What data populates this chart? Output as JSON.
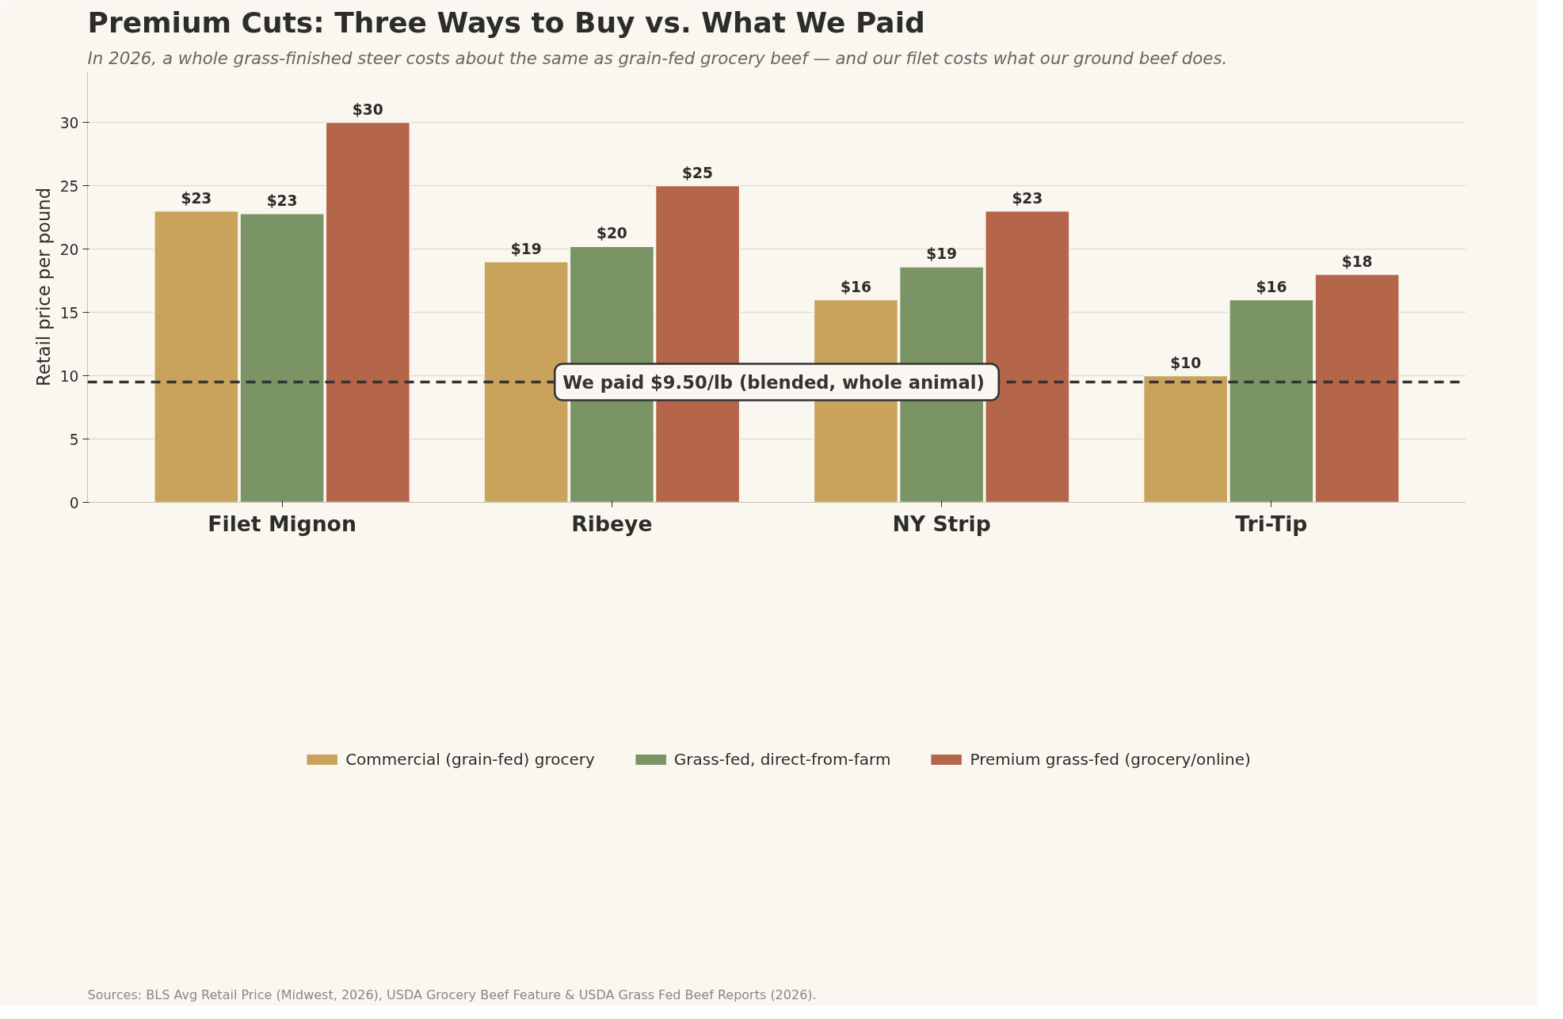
{
  "chart_data": {
    "type": "bar",
    "title": "Premium Cuts: Three Ways to Buy vs. What We Paid",
    "subtitle": "In 2026, a whole grass-finished steer costs about the same as grain-fed grocery beef — and our filet costs what our ground beef does.",
    "ylabel": "Retail price per pound",
    "categories": [
      "Filet Mignon",
      "Ribeye",
      "NY Strip",
      "Tri-Tip"
    ],
    "series": [
      {
        "name": "Commercial (grain-fed) grocery",
        "color": "#c9a35c",
        "values": [
          23,
          19,
          16,
          10
        ],
        "value_labels": [
          "$23",
          "$19",
          "$16",
          "$10"
        ]
      },
      {
        "name": "Grass-fed, direct-from-farm",
        "color": "#7a9466",
        "values": [
          22.8,
          20.2,
          18.6,
          16
        ],
        "value_labels": [
          "$23",
          "$20",
          "$19",
          "$16"
        ]
      },
      {
        "name": "Premium grass-fed (grocery/online)",
        "color": "#b5654a",
        "values": [
          30,
          25,
          23,
          18
        ],
        "value_labels": [
          "$30",
          "$25",
          "$23",
          "$18"
        ]
      }
    ],
    "ylim": [
      0,
      34
    ],
    "yticks": [
      0,
      5,
      10,
      15,
      20,
      25,
      30
    ],
    "grid": "y",
    "legend": "bottom",
    "ref_lines": [
      {
        "axis": "y",
        "value": 9.5,
        "label": "We paid $9.50/lb  (blended, whole animal)",
        "color": "#333333",
        "line_style": "dashed"
      }
    ],
    "annotations": [
      "Sources: BLS Avg Retail Price (Midwest, 2026), USDA Grocery Beef Feature & USDA Grass Fed Beef Reports (2026)."
    ]
  }
}
